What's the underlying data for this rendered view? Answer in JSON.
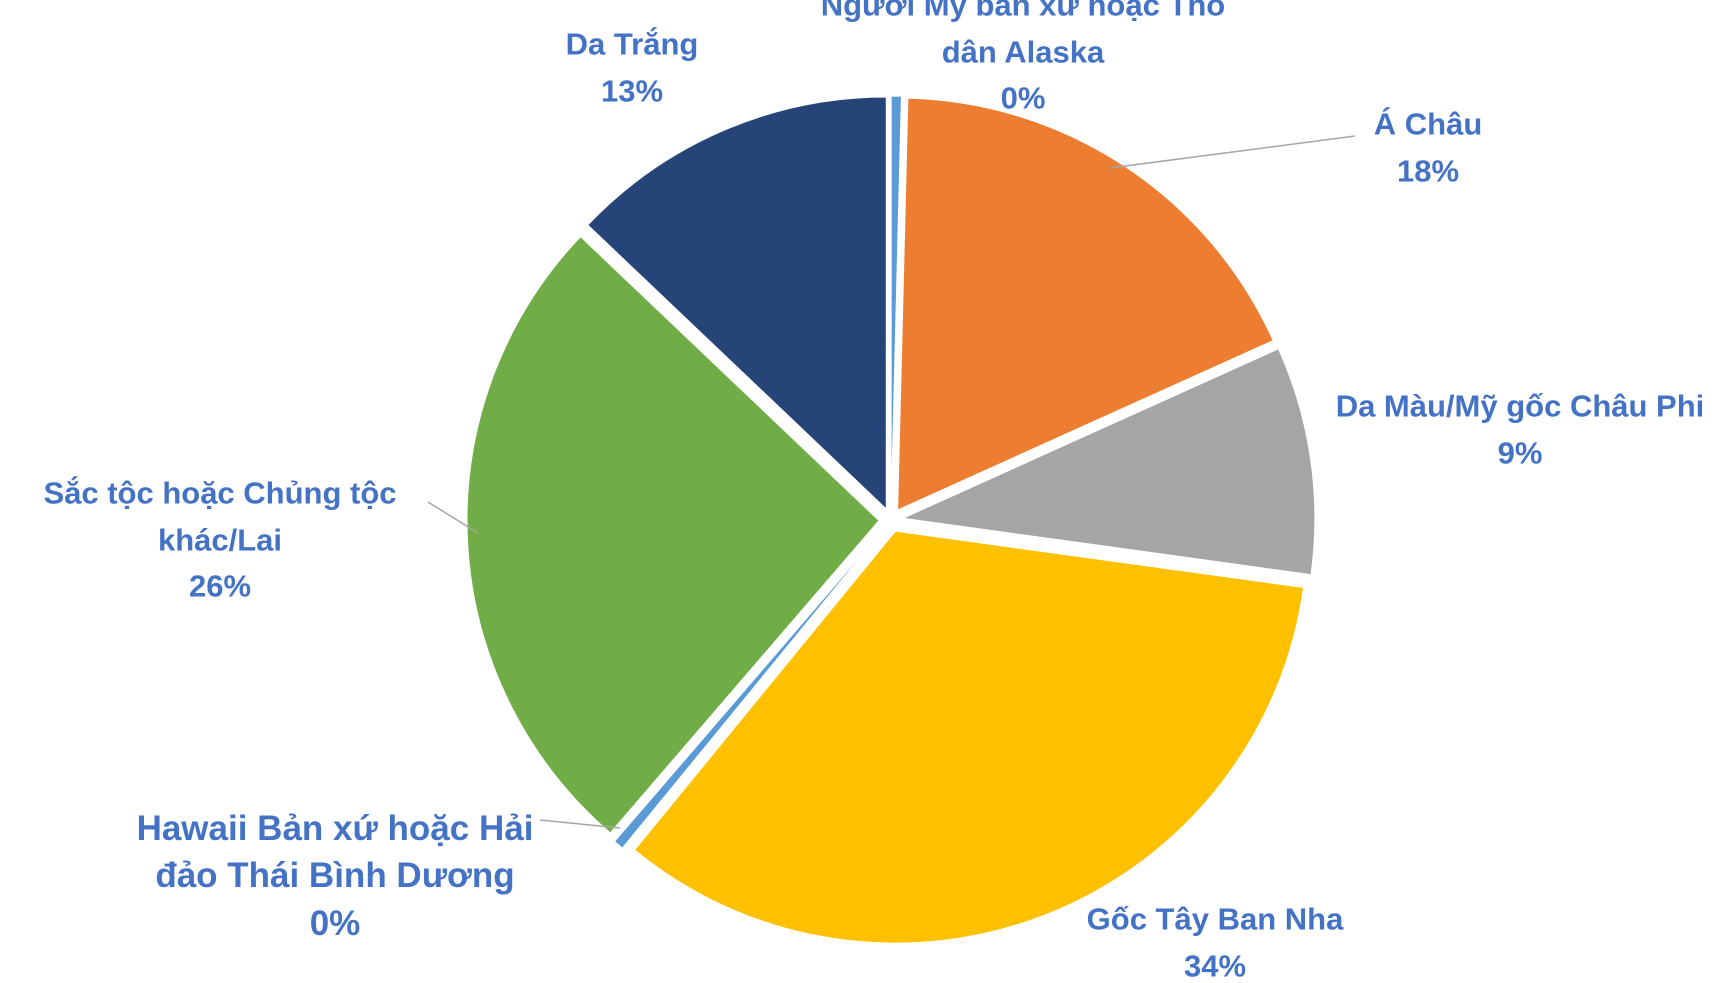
{
  "chart_data": {
    "type": "pie",
    "categories": [
      "Người Mỹ bản xứ hoặc Thổ dân Alaska",
      "Á Châu",
      "Da Màu/Mỹ gốc Châu Phi",
      "Gốc Tây Ban Nha",
      "Hawaii Bản xứ hoặc Hải đảo Thái Bình Dương",
      "Sắc tộc hoặc Chủng tộc khác/Lai",
      "Da Trắng"
    ],
    "values": [
      0.4,
      18,
      9,
      34,
      0.4,
      26,
      13
    ],
    "value_labels": [
      "0%",
      "18%",
      "9%",
      "34%",
      "0%",
      "26%",
      "13%"
    ],
    "colors": [
      "#5b9bd5",
      "#ed7d31",
      "#a5a5a5",
      "#ffc000",
      "#5b9bd5",
      "#70ad47",
      "#264478"
    ]
  }
}
